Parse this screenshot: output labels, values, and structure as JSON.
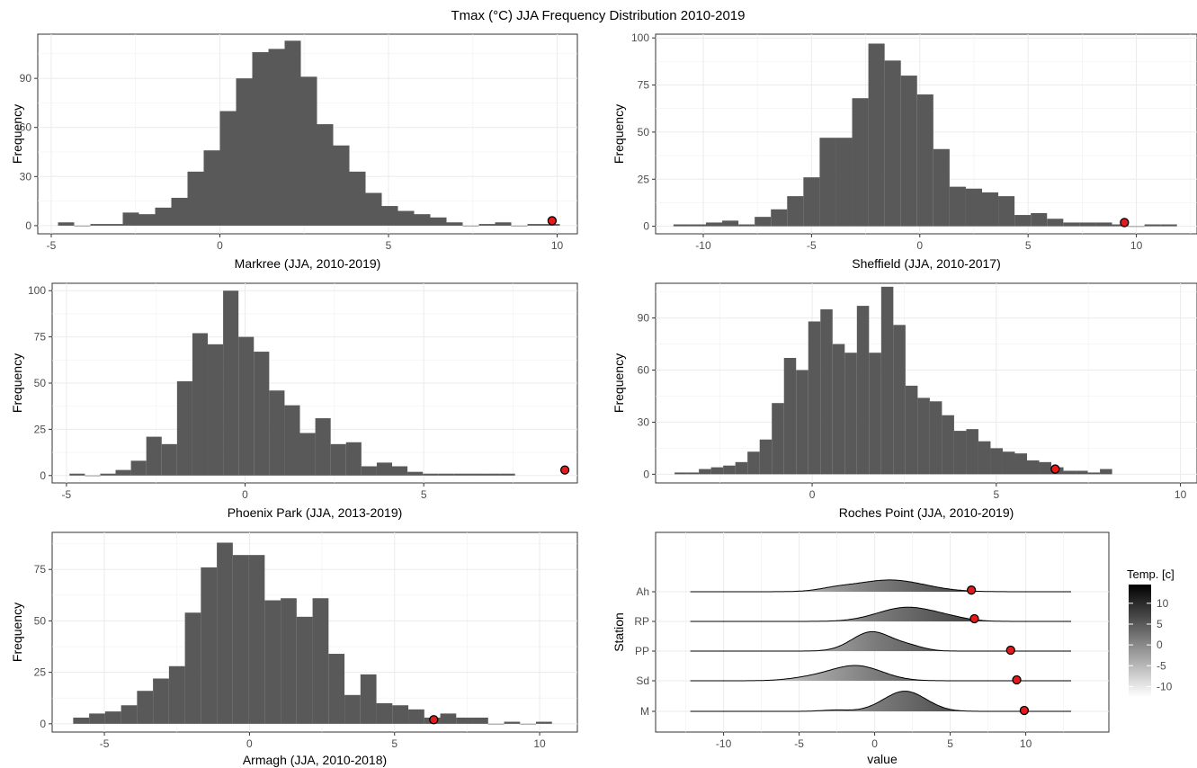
{
  "title": "Tmax (°C) JJA Frequency Distribution 2010-2019",
  "chart_data": [
    {
      "type": "bar",
      "ylabel": "Frequency",
      "xlabel": "Markree (JJA, 2010-2019)",
      "xlim": [
        -5.4,
        10.6
      ],
      "ylim": [
        -5,
        117
      ],
      "xticks": [
        -5,
        0,
        5,
        10
      ],
      "yticks": [
        0,
        30,
        60,
        90
      ],
      "binwidth": 0.48,
      "bins": [
        [
          -4.56,
          2
        ],
        [
          -4.08,
          0
        ],
        [
          -3.6,
          1
        ],
        [
          -3.12,
          1
        ],
        [
          -2.64,
          8
        ],
        [
          -2.16,
          7
        ],
        [
          -1.68,
          11
        ],
        [
          -1.2,
          17
        ],
        [
          -0.72,
          33
        ],
        [
          -0.24,
          46
        ],
        [
          0.24,
          70
        ],
        [
          0.72,
          90
        ],
        [
          1.2,
          106
        ],
        [
          1.68,
          108
        ],
        [
          2.16,
          113
        ],
        [
          2.64,
          91
        ],
        [
          3.12,
          62
        ],
        [
          3.6,
          49
        ],
        [
          4.08,
          33
        ],
        [
          4.56,
          20
        ],
        [
          5.04,
          12
        ],
        [
          5.52,
          9
        ],
        [
          6.0,
          7
        ],
        [
          6.48,
          5
        ],
        [
          6.96,
          2
        ],
        [
          7.44,
          0
        ],
        [
          7.92,
          1
        ],
        [
          8.4,
          2
        ],
        [
          8.88,
          0
        ],
        [
          9.36,
          1
        ],
        [
          9.84,
          1
        ]
      ],
      "point": {
        "x": 9.85,
        "y": 3
      }
    },
    {
      "type": "bar",
      "ylabel": "Frequency",
      "xlabel": "Sheffield (JJA, 2010-2017)",
      "xlim": [
        -12.2,
        12.8
      ],
      "ylim": [
        -4,
        102
      ],
      "xticks": [
        -10,
        -5,
        0,
        5,
        10
      ],
      "yticks": [
        0,
        25,
        50,
        75,
        100
      ],
      "binwidth": 0.75,
      "bins": [
        [
          -11.0,
          1
        ],
        [
          -10.25,
          1
        ],
        [
          -9.5,
          2
        ],
        [
          -8.75,
          3
        ],
        [
          -8.0,
          1
        ],
        [
          -7.25,
          5
        ],
        [
          -6.5,
          9
        ],
        [
          -5.75,
          16
        ],
        [
          -5.0,
          26
        ],
        [
          -4.25,
          47
        ],
        [
          -3.5,
          47
        ],
        [
          -2.75,
          68
        ],
        [
          -2.0,
          97
        ],
        [
          -1.25,
          88
        ],
        [
          -0.5,
          80
        ],
        [
          0.25,
          70
        ],
        [
          1.0,
          41
        ],
        [
          1.75,
          21
        ],
        [
          2.5,
          20
        ],
        [
          3.25,
          18
        ],
        [
          4.0,
          16
        ],
        [
          4.75,
          6
        ],
        [
          5.5,
          7
        ],
        [
          6.25,
          4
        ],
        [
          7.0,
          2
        ],
        [
          7.75,
          2
        ],
        [
          8.5,
          2
        ],
        [
          9.25,
          1
        ],
        [
          10.0,
          0
        ],
        [
          10.75,
          1
        ],
        [
          11.5,
          1
        ]
      ],
      "point": {
        "x": 9.45,
        "y": 2
      }
    },
    {
      "type": "bar",
      "ylabel": "Frequency",
      "xlabel": "Phoenix Park (JJA, 2013-2019)",
      "xlim": [
        -5.4,
        9.3
      ],
      "ylim": [
        -4,
        104
      ],
      "xticks": [
        -5,
        0,
        5
      ],
      "yticks": [
        0,
        25,
        50,
        75,
        100
      ],
      "binwidth": 0.43,
      "bins": [
        [
          -4.7,
          1
        ],
        [
          -4.27,
          0
        ],
        [
          -3.84,
          1
        ],
        [
          -3.41,
          3
        ],
        [
          -2.98,
          8
        ],
        [
          -2.55,
          21
        ],
        [
          -2.12,
          17
        ],
        [
          -1.69,
          51
        ],
        [
          -1.26,
          77
        ],
        [
          -0.83,
          71
        ],
        [
          -0.4,
          100
        ],
        [
          0.03,
          75
        ],
        [
          0.46,
          67
        ],
        [
          0.89,
          46
        ],
        [
          1.32,
          38
        ],
        [
          1.75,
          23
        ],
        [
          2.18,
          31
        ],
        [
          2.61,
          17
        ],
        [
          3.04,
          18
        ],
        [
          3.47,
          5
        ],
        [
          3.9,
          7
        ],
        [
          4.33,
          5
        ],
        [
          4.76,
          2
        ],
        [
          5.19,
          1
        ],
        [
          5.62,
          1
        ],
        [
          6.05,
          1
        ],
        [
          6.48,
          1
        ],
        [
          6.91,
          1
        ],
        [
          7.34,
          1
        ]
      ],
      "point": {
        "x": 8.95,
        "y": 3
      }
    },
    {
      "type": "bar",
      "ylabel": "Frequency",
      "xlabel": "Roches Point (JJA, 2010-2019)",
      "xlim": [
        -4.25,
        10.45
      ],
      "ylim": [
        -5,
        110
      ],
      "xticks": [
        0,
        5,
        10
      ],
      "yticks": [
        0,
        30,
        60,
        90
      ],
      "binwidth": 0.33,
      "bins": [
        [
          -3.57,
          1
        ],
        [
          -3.24,
          1
        ],
        [
          -2.91,
          3
        ],
        [
          -2.58,
          4
        ],
        [
          -2.25,
          5
        ],
        [
          -1.92,
          7
        ],
        [
          -1.59,
          13
        ],
        [
          -1.26,
          20
        ],
        [
          -0.93,
          41
        ],
        [
          -0.6,
          67
        ],
        [
          -0.27,
          60
        ],
        [
          0.06,
          88
        ],
        [
          0.39,
          95
        ],
        [
          0.72,
          75
        ],
        [
          1.05,
          70
        ],
        [
          1.38,
          97
        ],
        [
          1.71,
          70
        ],
        [
          2.04,
          108
        ],
        [
          2.37,
          86
        ],
        [
          2.7,
          51
        ],
        [
          3.03,
          44
        ],
        [
          3.36,
          42
        ],
        [
          3.69,
          34
        ],
        [
          4.02,
          25
        ],
        [
          4.35,
          26
        ],
        [
          4.68,
          19
        ],
        [
          5.01,
          15
        ],
        [
          5.34,
          13
        ],
        [
          5.67,
          12
        ],
        [
          6.0,
          8
        ],
        [
          6.33,
          7
        ],
        [
          6.66,
          4
        ],
        [
          6.99,
          2
        ],
        [
          7.32,
          2
        ],
        [
          7.65,
          1
        ],
        [
          7.98,
          3
        ]
      ],
      "point": {
        "x": 6.6,
        "y": 3
      }
    },
    {
      "type": "bar",
      "ylabel": "Frequency",
      "xlabel": "Armagh (JJA, 2010-2018)",
      "xlim": [
        -6.8,
        11.3
      ],
      "ylim": [
        -4,
        93
      ],
      "xticks": [
        -5,
        0,
        5,
        10
      ],
      "yticks": [
        0,
        25,
        50,
        75
      ],
      "binwidth": 0.55,
      "bins": [
        [
          -5.8,
          3
        ],
        [
          -5.25,
          5
        ],
        [
          -4.7,
          6
        ],
        [
          -4.15,
          9
        ],
        [
          -3.6,
          16
        ],
        [
          -3.05,
          22
        ],
        [
          -2.5,
          28
        ],
        [
          -1.95,
          54
        ],
        [
          -1.4,
          76
        ],
        [
          -0.85,
          88
        ],
        [
          -0.3,
          82
        ],
        [
          0.25,
          82
        ],
        [
          0.8,
          60
        ],
        [
          1.35,
          61
        ],
        [
          1.9,
          52
        ],
        [
          2.45,
          61
        ],
        [
          3.0,
          34
        ],
        [
          3.55,
          14
        ],
        [
          4.1,
          24
        ],
        [
          4.65,
          10
        ],
        [
          5.2,
          9
        ],
        [
          5.75,
          7
        ],
        [
          6.3,
          3
        ],
        [
          6.85,
          5
        ],
        [
          7.4,
          3
        ],
        [
          7.95,
          3
        ],
        [
          8.5,
          0
        ],
        [
          9.05,
          1
        ],
        [
          9.6,
          0
        ],
        [
          10.15,
          1
        ]
      ],
      "point": {
        "x": 6.35,
        "y": 2
      }
    },
    {
      "type": "ridgeline",
      "ylabel": "Station",
      "xlabel": "value",
      "xlim": [
        -14.5,
        15.5
      ],
      "xticks": [
        -10,
        -5,
        0,
        5,
        10
      ],
      "categories": [
        "Ah",
        "RP",
        "PP",
        "Sd",
        "M"
      ],
      "series": [
        {
          "name": "Ah",
          "mu": 1.0,
          "sigma": 2.3,
          "mu2": -2.6,
          "sigma2": 1.1,
          "w2": 0.08,
          "point": 6.4
        },
        {
          "name": "RP",
          "mu": 2.1,
          "sigma": 1.9,
          "mu2": 4.9,
          "sigma2": 1.3,
          "w2": 0.1,
          "point": 6.6
        },
        {
          "name": "PP",
          "mu": -0.2,
          "sigma": 1.3,
          "mu2": 2.3,
          "sigma2": 1.0,
          "w2": 0.15,
          "point": 9.0
        },
        {
          "name": "Sd",
          "mu": -1.2,
          "sigma": 1.7,
          "mu2": -4.2,
          "sigma2": 1.5,
          "w2": 0.14,
          "point": 9.4
        },
        {
          "name": "M",
          "mu": 2.0,
          "sigma": 1.4,
          "mu2": -2.6,
          "sigma2": 0.9,
          "w2": 0.04,
          "point": 9.9
        }
      ],
      "legend": {
        "title": "Temp. [c]",
        "ticks": [
          10,
          5,
          0,
          -5,
          -10
        ],
        "range": [
          -12.5,
          14.5
        ],
        "position": "right"
      }
    }
  ]
}
